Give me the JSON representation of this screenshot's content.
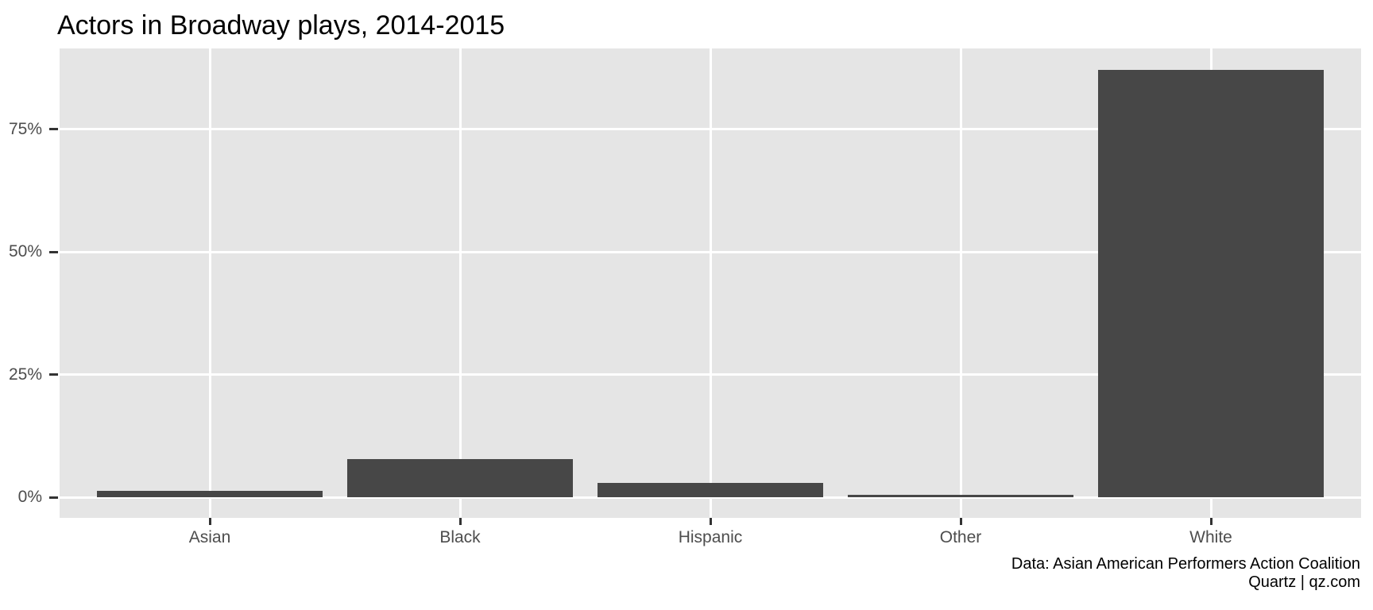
{
  "chart_data": {
    "type": "bar",
    "title": "Actors in Broadway plays, 2014-2015",
    "categories": [
      "Asian",
      "Black",
      "Hispanic",
      "Other",
      "White"
    ],
    "values": [
      1.3,
      7.7,
      2.9,
      0.5,
      87.1
    ],
    "value_format": "percent",
    "xlabel": "",
    "ylabel": "",
    "y_ticks": [
      {
        "value": 0,
        "label": "0%"
      },
      {
        "value": 25,
        "label": "25%"
      },
      {
        "value": 50,
        "label": "50%"
      },
      {
        "value": 75,
        "label": "75%"
      }
    ],
    "ylim": [
      0,
      91.5
    ],
    "grid": {
      "horizontal": true,
      "vertical": true,
      "minor": false
    },
    "legend": "none",
    "bar_relative_width": 0.9,
    "caption_line1": "Data: Asian American Performers Action Coalition",
    "caption_line2": "Quartz | qz.com",
    "colors": {
      "bar_fill": "#474747",
      "panel_background": "#e5e5e5",
      "gridline": "#ffffff",
      "axis_text": "#4d4d4d",
      "tick_mark": "#333333",
      "title_text": "#000000",
      "caption_text": "#000000",
      "page_background": "#ffffff"
    }
  }
}
